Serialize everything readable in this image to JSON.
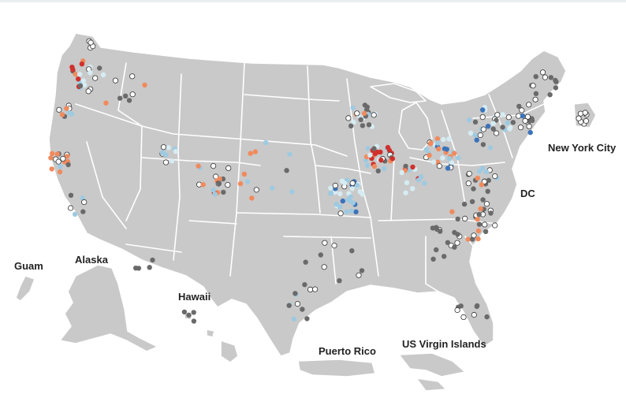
{
  "map": {
    "labels": {
      "guam": "Guam",
      "alaska": "Alaska",
      "hawaii": "Hawaii",
      "puerto_rico": "Puerto Rico",
      "virgin_islands": "US Virgin Islands",
      "new_york_city": "New York City",
      "dc": "DC"
    },
    "colors": {
      "land": "#c9c9c9",
      "borders": "#ffffff",
      "dark_red": "#d0312d",
      "orange": "#f08a5d",
      "light_blue": "#9ecae1",
      "pale_blue": "#d6ecf3",
      "dark_blue": "#3b73b9",
      "dark_gray": "#6a6a6a",
      "white_marker": "#ffffff"
    }
  }
}
